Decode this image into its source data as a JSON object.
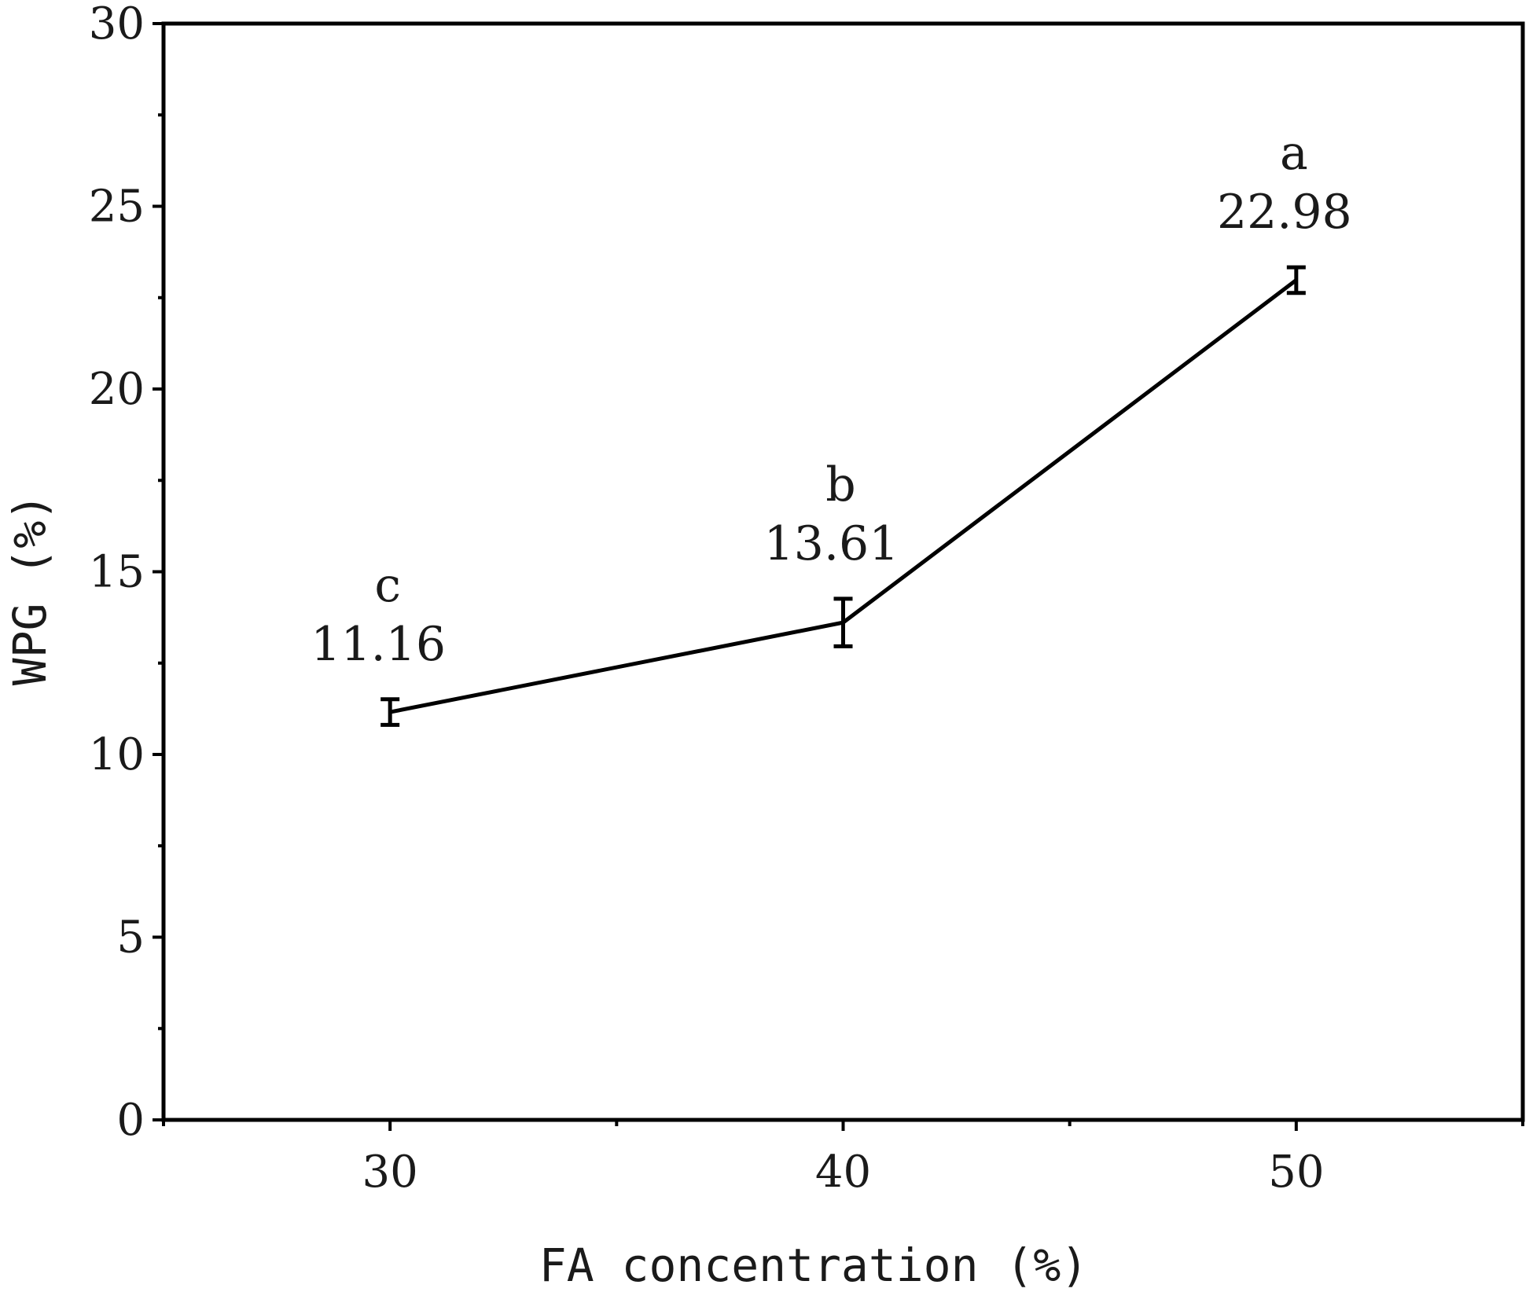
{
  "chart_data": {
    "type": "line",
    "xlabel": "FA concentration (%)",
    "ylabel": "WPG (%)",
    "xlim": [
      25,
      55
    ],
    "ylim": [
      0,
      30
    ],
    "x_ticks": [
      30,
      40,
      50
    ],
    "x_tick_labels": [
      "30",
      "40",
      "50"
    ],
    "x_minor_ticks": [
      25,
      35,
      45,
      55
    ],
    "y_ticks": [
      0,
      5,
      10,
      15,
      20,
      25,
      30
    ],
    "y_tick_labels": [
      "0",
      "5",
      "10",
      "15",
      "20",
      "25",
      "30"
    ],
    "y_minor_ticks": [
      2.5,
      7.5,
      12.5,
      17.5,
      22.5,
      27.5
    ],
    "grid": false,
    "series": [
      {
        "x": [
          30,
          40,
          50
        ],
        "values": [
          11.16,
          13.61,
          22.98
        ],
        "error": [
          0.35,
          0.65,
          0.35
        ],
        "value_labels": [
          "11.16",
          "13.61",
          "22.98"
        ],
        "significance_letters": [
          "c",
          "b",
          "a"
        ]
      }
    ]
  }
}
